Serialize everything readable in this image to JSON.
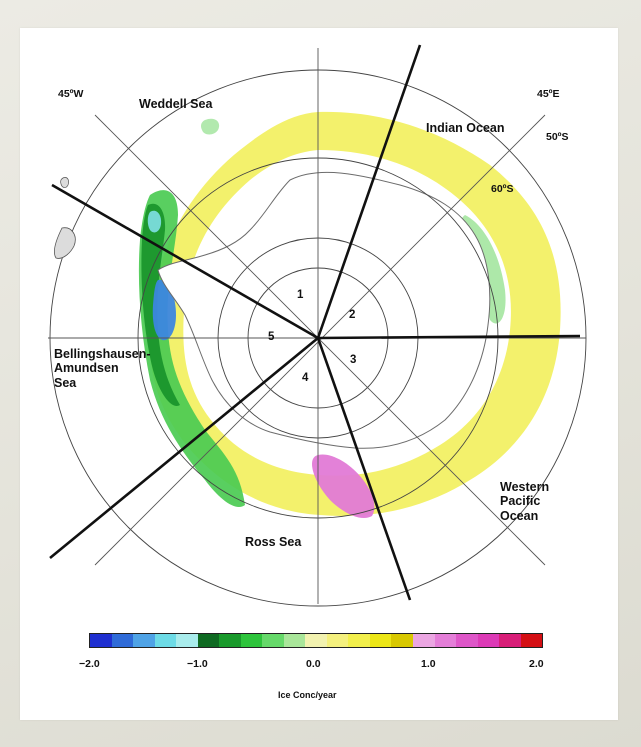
{
  "labels": {
    "weddell": "Weddell Sea",
    "indian": "Indian Ocean",
    "bellingshausen_line1": "Bellingshausen-",
    "bellingshausen_line2": "Amundsen",
    "bellingshausen_line3": "Sea",
    "ross": "Ross Sea",
    "wpac_line1": "Western",
    "wpac_line2": "Pacific",
    "wpac_line3": "Ocean",
    "lon_45w": "45ºW",
    "lon_45e": "45ºE",
    "lat_50s": "50ºS",
    "lat_60s": "60ºS"
  },
  "sectors": [
    "1",
    "2",
    "3",
    "4",
    "5"
  ],
  "colorbar": {
    "ticks": [
      "−2.0",
      "−1.0",
      "0.0",
      "1.0",
      "2.0"
    ],
    "units": "Ice Conc/year",
    "min": -2.0,
    "max": 2.0,
    "colors": [
      "#1f2fd0",
      "#2f6bd8",
      "#4fa3e6",
      "#6ddbe6",
      "#a9ecec",
      "#0f6a22",
      "#1a9a2c",
      "#2ec43c",
      "#66d96a",
      "#a9e69a",
      "#f2f2b0",
      "#f4f07e",
      "#f2ef4c",
      "#ece617",
      "#d8c800",
      "#eba6e2",
      "#e47ed8",
      "#de56c8",
      "#dc3ab6",
      "#d81e78",
      "#d40f14"
    ]
  },
  "legend_colors": {
    "decrease_strong": "#2f6bd8",
    "decrease": "#1a9a2c",
    "neutral": "#f2f2b0",
    "increase": "#ece617",
    "increase_strong": "#de56c8"
  }
}
